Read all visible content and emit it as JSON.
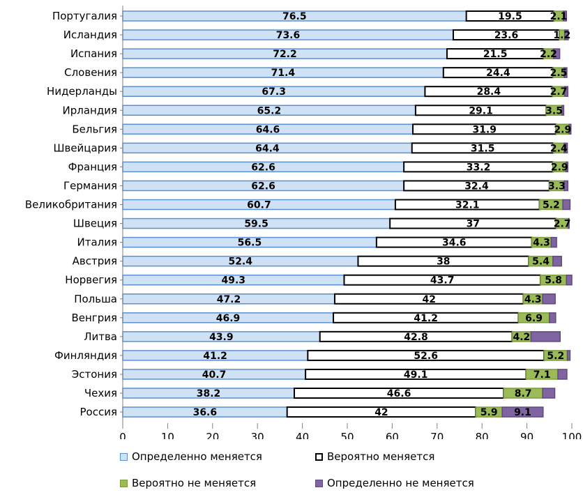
{
  "chart_data": {
    "type": "bar",
    "orientation": "horizontal",
    "stacked": true,
    "categories": [
      "Португалия",
      "Исландия",
      "Испания",
      "Словения",
      "Нидерланды",
      "Ирландия",
      "Бельгия",
      "Швейцария",
      "Франция",
      "Германия",
      "Великобритания",
      "Швеция",
      "Италия",
      "Австрия",
      "Норвегия",
      "Польша",
      "Венгрия",
      "Литва",
      "Финляндия",
      "Эстония",
      "Чехия",
      "Россия"
    ],
    "series": [
      {
        "name": "Определенно меняется",
        "color": "#cfe1f5",
        "border": "#5b8fd0",
        "values": [
          76.5,
          73.6,
          72.2,
          71.4,
          67.3,
          65.2,
          64.6,
          64.4,
          62.6,
          62.6,
          60.7,
          59.5,
          56.5,
          52.4,
          49.3,
          47.2,
          46.9,
          43.9,
          41.2,
          40.7,
          38.2,
          36.6
        ],
        "labels": [
          "76.5",
          "73.6",
          "72.2",
          "71.4",
          "67.3",
          "65.2",
          "64.6",
          "64.4",
          "62.6",
          "62.6",
          "60.7",
          "59.5",
          "56.5",
          "52.4",
          "49.3",
          "47.2",
          "46.9",
          "43.9",
          "41.2",
          "40.7",
          "38.2",
          "36.6"
        ]
      },
      {
        "name": "Вероятно меняется",
        "color": "#ffffff",
        "border": "#000000",
        "values": [
          19.5,
          23.6,
          21.5,
          24.4,
          28.4,
          29.1,
          31.9,
          31.5,
          33.2,
          32.4,
          32.1,
          37,
          34.6,
          38,
          43.7,
          42,
          41.2,
          42.8,
          52.6,
          49.1,
          46.6,
          42
        ],
        "labels": [
          "19.5",
          "23.6",
          "21.5",
          "24.4",
          "28.4",
          "29.1",
          "31.9",
          "31.5",
          "33.2",
          "32.4",
          "32.1",
          "37",
          "34.6",
          "38",
          "43.7",
          "42",
          "41.2",
          "42.8",
          "52.6",
          "49.1",
          "46.6",
          "42"
        ]
      },
      {
        "name": "Вероятно не меняется",
        "color": "#9bbb59",
        "border": "#7a9a3c",
        "values": [
          2.1,
          1.2,
          2.2,
          2.5,
          2.7,
          3.5,
          2.9,
          2.4,
          2.9,
          3.3,
          5.2,
          2.7,
          4.3,
          5.4,
          5.8,
          4.3,
          6.9,
          4.2,
          5.2,
          7.1,
          8.7,
          5.9
        ],
        "labels": [
          "2.1",
          "1.2",
          "2.2",
          "2.5",
          "2.7",
          "3.5",
          "2.9",
          "2.4",
          "2.9",
          "3.3",
          "5.2",
          "2.7",
          "4.3",
          "5.4",
          "5.8",
          "4.3",
          "6.9",
          "4.2",
          "5.2",
          "7.1",
          "8.7",
          "5.9"
        ]
      },
      {
        "name": "Определенно не меняется",
        "color": "#8064a2",
        "border": "#5f4a7e",
        "values": [
          0.7,
          0.8,
          1.4,
          0.6,
          0.7,
          0.4,
          0.4,
          0.7,
          0.4,
          0.8,
          1.6,
          0.2,
          1.2,
          1.9,
          1.2,
          2.8,
          1.4,
          6.5,
          0.6,
          2,
          2.7,
          9.1
        ],
        "labels": [
          "",
          "",
          "",
          "",
          "",
          "",
          "",
          "",
          "",
          "",
          "",
          "",
          "",
          "",
          "",
          "",
          "",
          "",
          "",
          "",
          "",
          "9.1"
        ]
      }
    ],
    "xlim": [
      0,
      100
    ],
    "xticks": [
      "0",
      "10",
      "20",
      "30",
      "40",
      "50",
      "60",
      "70",
      "80",
      "90",
      "100"
    ],
    "legend_position": "bottom"
  }
}
